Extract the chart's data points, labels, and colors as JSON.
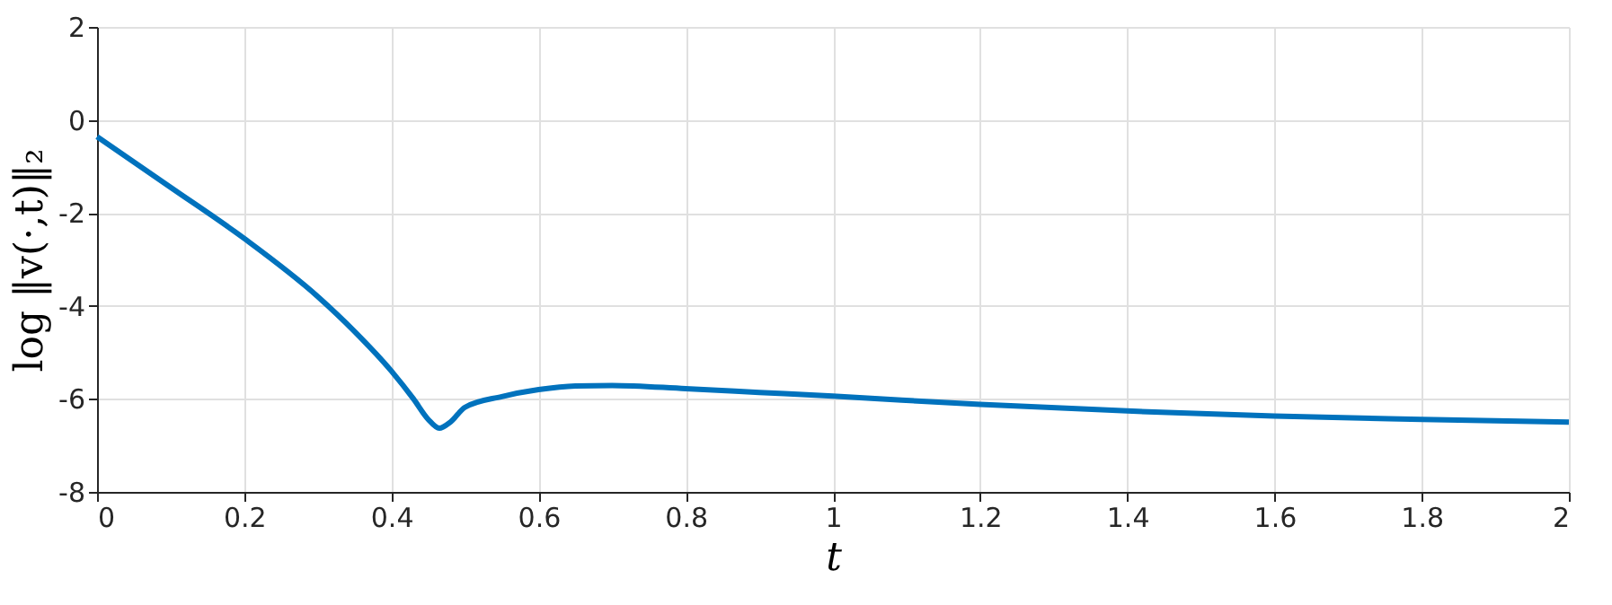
{
  "chart_data": {
    "type": "line",
    "xlabel": "t",
    "ylabel": "log ‖v(·,t)‖₂",
    "x": [
      0,
      0.1,
      0.2,
      0.3,
      0.35,
      0.4,
      0.43,
      0.45,
      0.465,
      0.48,
      0.5,
      0.55,
      0.6,
      0.65,
      0.7,
      0.8,
      0.9,
      1.0,
      1.2,
      1.4,
      1.6,
      1.8,
      2.0
    ],
    "series": [
      {
        "color": "#0072bd",
        "values": [
          -0.36,
          -1.45,
          -2.55,
          -3.8,
          -4.55,
          -5.4,
          -6.0,
          -6.44,
          -6.63,
          -6.5,
          -6.18,
          -5.95,
          -5.8,
          -5.72,
          -5.71,
          -5.78,
          -5.86,
          -5.94,
          -6.12,
          -6.26,
          -6.37,
          -6.44,
          -6.5
        ]
      }
    ],
    "xlim": [
      0,
      2
    ],
    "xticks": [
      0,
      0.2,
      0.4,
      0.6,
      0.8,
      1,
      1.2,
      1.4,
      1.6,
      1.8,
      2
    ],
    "ylim": [
      -8,
      2
    ],
    "yticks": [
      -8,
      -6,
      -4,
      -2,
      0,
      2
    ],
    "grid": true,
    "line_style": "solid"
  }
}
